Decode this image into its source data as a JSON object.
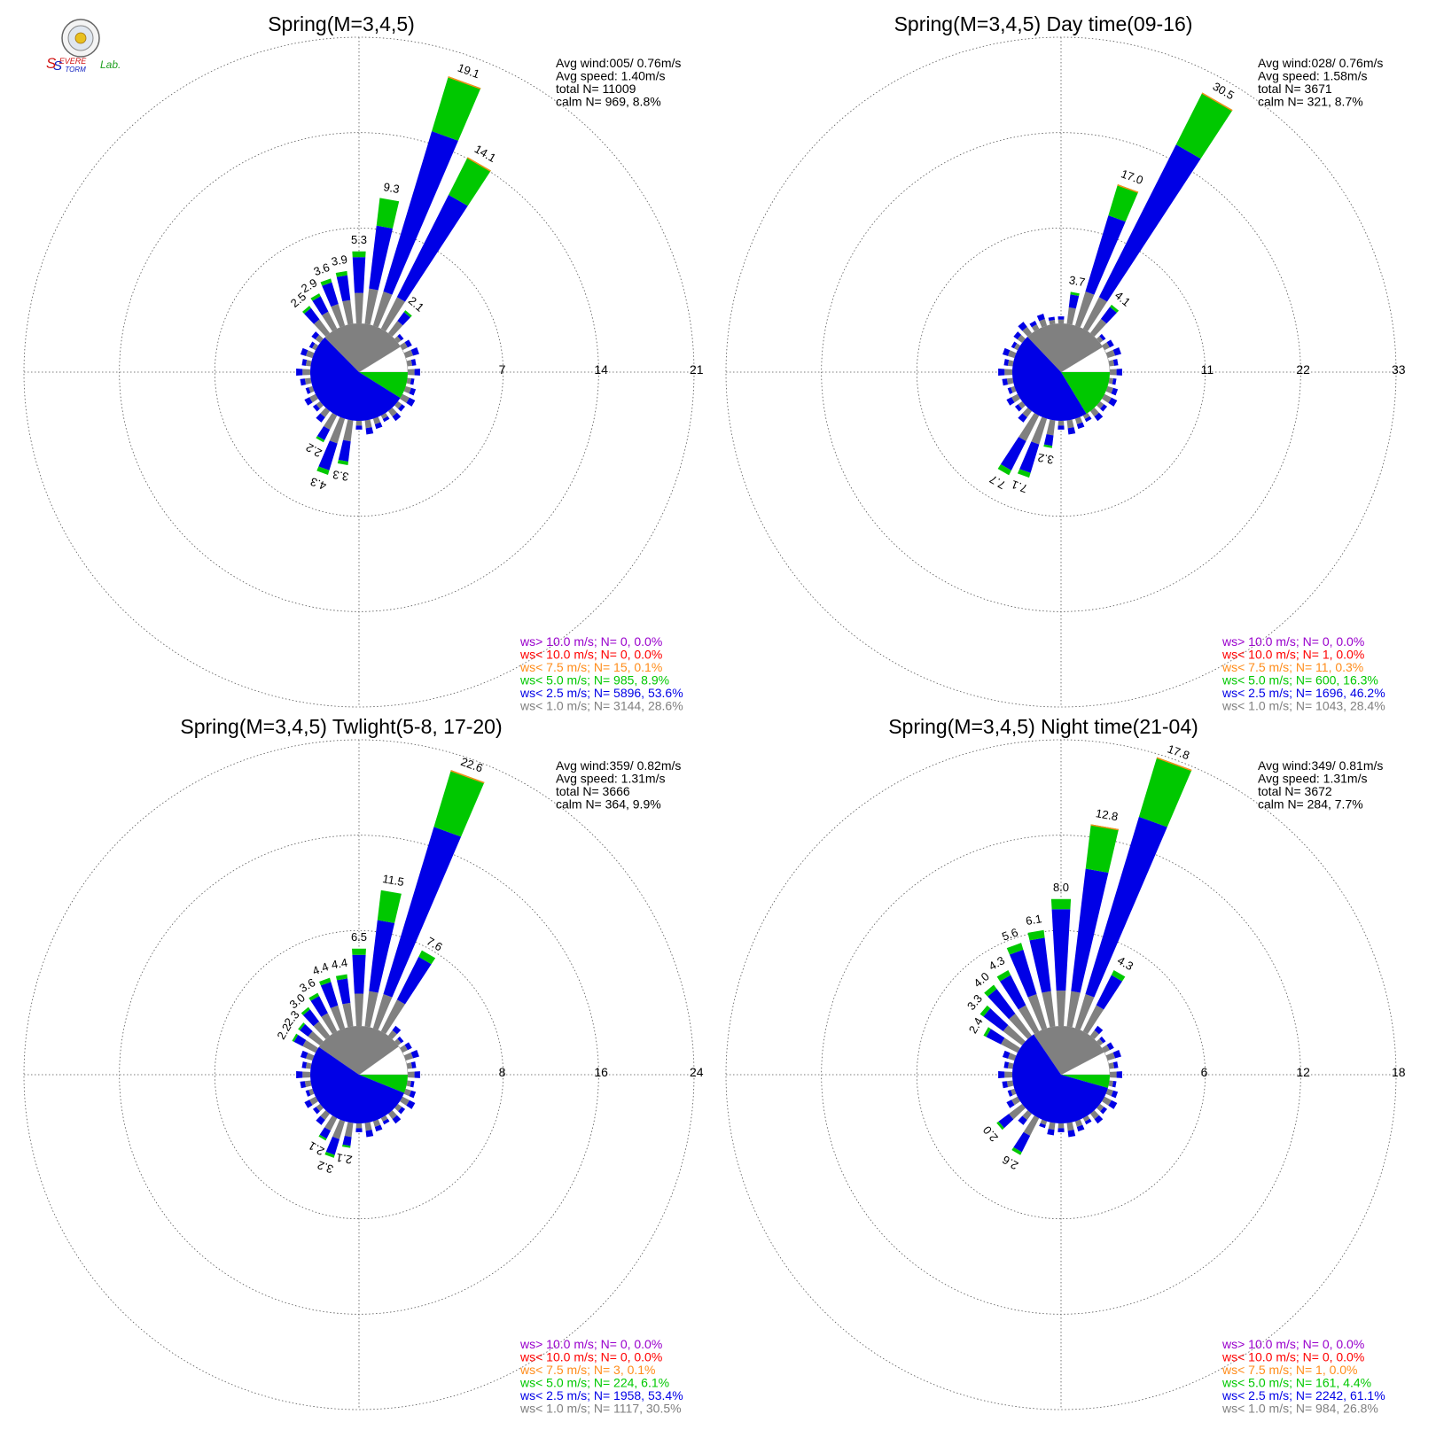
{
  "logo": {
    "text_s1": "S",
    "text_evere": "EVERE",
    "text_s2": "S",
    "text_torm": "TORM",
    "text_lab": "Lab."
  },
  "colors": {
    "calm_white": "#ffffff",
    "c_lt1": "#808080",
    "c_lt25": "#0000e6",
    "c_lt5": "#00c800",
    "c_lt75": "#ff8c1a",
    "c_lt10": "#ff0000",
    "c_gt10": "#9900cc"
  },
  "chart_data": [
    {
      "type": "wind-rose",
      "title": "Spring(M=3,4,5)",
      "stats": [
        "Avg wind:005/ 0.76m/s",
        "Avg speed: 1.40m/s",
        "total N=       11009",
        "calm N=    969,   8.8%"
      ],
      "rings": [
        7,
        14,
        21
      ],
      "ring_labels": [
        "7",
        "14",
        "21"
      ],
      "calm_pct": 8.8,
      "pie_fractions": {
        "calm": 0.088,
        "lt1": 0.286,
        "lt25": 0.536,
        "lt5": 0.089
      },
      "labeled": [
        {
          "dir_deg": 10,
          "value": 9.3,
          "label": "9.3"
        },
        {
          "dir_deg": 20,
          "value": 19.1,
          "label": "19.1"
        },
        {
          "dir_deg": 30,
          "value": 14.1,
          "label": "14.1"
        },
        {
          "dir_deg": 40,
          "value": 2.1,
          "label": "2.1"
        },
        {
          "dir_deg": 360,
          "value": 5.3,
          "label": "5.3"
        },
        {
          "dir_deg": 350,
          "value": 3.9,
          "label": "3.9"
        },
        {
          "dir_deg": 340,
          "value": 3.6,
          "label": "3.6"
        },
        {
          "dir_deg": 330,
          "value": 2.9,
          "label": "2.9"
        },
        {
          "dir_deg": 320,
          "value": 2.5,
          "label": "2.5"
        },
        {
          "dir_deg": 190,
          "value": 3.3,
          "label": "3.3"
        },
        {
          "dir_deg": 200,
          "value": 4.3,
          "label": "4.3"
        },
        {
          "dir_deg": 210,
          "value": 2.2,
          "label": "2.2"
        }
      ],
      "legend": [
        {
          "text": "ws> 10.0 m/s; N=      0,  0.0%",
          "color": "#9900cc"
        },
        {
          "text": "ws< 10.0 m/s; N=      0,  0.0%",
          "color": "#ff0000"
        },
        {
          "text": "ws<  7.5 m/s; N=     15,  0.1%",
          "color": "#ff8c1a"
        },
        {
          "text": "ws<  5.0 m/s; N=    985,  8.9%",
          "color": "#00c800"
        },
        {
          "text": "ws<  2.5 m/s; N=   5896, 53.6%",
          "color": "#0000e6"
        },
        {
          "text": "ws<  1.0 m/s; N=   3144, 28.6%",
          "color": "#808080"
        }
      ]
    },
    {
      "type": "wind-rose",
      "title": "Spring(M=3,4,5) Day time(09-16)",
      "stats": [
        "Avg wind:028/ 0.76m/s",
        "Avg speed: 1.58m/s",
        "total N=        3671",
        "calm N=    321,   8.7%"
      ],
      "rings": [
        11,
        22,
        33
      ],
      "ring_labels": [
        "11",
        "22",
        "33"
      ],
      "calm_pct": 8.7,
      "pie_fractions": {
        "calm": 0.087,
        "lt1": 0.284,
        "lt25": 0.462,
        "lt5": 0.163
      },
      "labeled": [
        {
          "dir_deg": 20,
          "value": 17.0,
          "label": "17.0"
        },
        {
          "dir_deg": 30,
          "value": 30.5,
          "label": "30.5"
        },
        {
          "dir_deg": 40,
          "value": 4.1,
          "label": "4.1"
        },
        {
          "dir_deg": 10,
          "value": 3.7,
          "label": "3.7"
        },
        {
          "dir_deg": 200,
          "value": 7.1,
          "label": "7.1"
        },
        {
          "dir_deg": 210,
          "value": 7.7,
          "label": "7.7"
        },
        {
          "dir_deg": 190,
          "value": 3.2,
          "label": "3.2"
        }
      ],
      "legend": [
        {
          "text": "ws> 10.0 m/s; N=      0,  0.0%",
          "color": "#9900cc"
        },
        {
          "text": "ws< 10.0 m/s; N=      1,  0.0%",
          "color": "#ff0000"
        },
        {
          "text": "ws<  7.5 m/s; N=     11,  0.3%",
          "color": "#ff8c1a"
        },
        {
          "text": "ws<  5.0 m/s; N=    600, 16.3%",
          "color": "#00c800"
        },
        {
          "text": "ws<  2.5 m/s; N=   1696, 46.2%",
          "color": "#0000e6"
        },
        {
          "text": "ws<  1.0 m/s; N=   1043, 28.4%",
          "color": "#808080"
        }
      ]
    },
    {
      "type": "wind-rose",
      "title": "Spring(M=3,4,5) Twlight(5-8, 17-20)",
      "stats": [
        "Avg wind:359/ 0.82m/s",
        "Avg speed: 1.31m/s",
        "total N=        3666",
        "calm N=    364,   9.9%"
      ],
      "rings": [
        8,
        16,
        24
      ],
      "ring_labels": [
        "8",
        "16",
        "24"
      ],
      "calm_pct": 9.9,
      "pie_fractions": {
        "calm": 0.099,
        "lt1": 0.305,
        "lt25": 0.534,
        "lt5": 0.061
      },
      "labeled": [
        {
          "dir_deg": 10,
          "value": 11.5,
          "label": "11.5"
        },
        {
          "dir_deg": 20,
          "value": 22.6,
          "label": "22.6"
        },
        {
          "dir_deg": 30,
          "value": 7.6,
          "label": "7.6"
        },
        {
          "dir_deg": 360,
          "value": 6.5,
          "label": "6.5"
        },
        {
          "dir_deg": 350,
          "value": 4.4,
          "label": "4.4"
        },
        {
          "dir_deg": 340,
          "value": 4.4,
          "label": "4.4"
        },
        {
          "dir_deg": 330,
          "value": 3.6,
          "label": "3.6"
        },
        {
          "dir_deg": 320,
          "value": 3.0,
          "label": "3.0"
        },
        {
          "dir_deg": 310,
          "value": 2.3,
          "label": "2.3"
        },
        {
          "dir_deg": 300,
          "value": 2.2,
          "label": "2.2"
        },
        {
          "dir_deg": 190,
          "value": 2.1,
          "label": "2.1"
        },
        {
          "dir_deg": 200,
          "value": 3.2,
          "label": "3.2"
        },
        {
          "dir_deg": 210,
          "value": 2.1,
          "label": "2.1"
        }
      ],
      "legend": [
        {
          "text": "ws> 10.0 m/s; N=      0,  0.0%",
          "color": "#9900cc"
        },
        {
          "text": "ws< 10.0 m/s; N=      0,  0.0%",
          "color": "#ff0000"
        },
        {
          "text": "ws<  7.5 m/s; N=      3,  0.1%",
          "color": "#ff8c1a"
        },
        {
          "text": "ws<  5.0 m/s; N=    224,  6.1%",
          "color": "#00c800"
        },
        {
          "text": "ws<  2.5 m/s; N=   1958, 53.4%",
          "color": "#0000e6"
        },
        {
          "text": "ws<  1.0 m/s; N=   1117, 30.5%",
          "color": "#808080"
        }
      ]
    },
    {
      "type": "wind-rose",
      "title": "Spring(M=3,4,5) Night time(21-04)",
      "stats": [
        "Avg wind:349/ 0.81m/s",
        "Avg speed: 1.31m/s",
        "total N=        3672",
        "calm N=    284,   7.7%"
      ],
      "rings": [
        6,
        12,
        18
      ],
      "ring_labels": [
        "6",
        "12",
        "18"
      ],
      "calm_pct": 7.7,
      "pie_fractions": {
        "calm": 0.077,
        "lt1": 0.268,
        "lt25": 0.611,
        "lt5": 0.044
      },
      "labeled": [
        {
          "dir_deg": 10,
          "value": 12.8,
          "label": "12.8"
        },
        {
          "dir_deg": 20,
          "value": 17.8,
          "label": "17.8"
        },
        {
          "dir_deg": 30,
          "value": 4.3,
          "label": "4.3"
        },
        {
          "dir_deg": 360,
          "value": 8.0,
          "label": "8.0"
        },
        {
          "dir_deg": 350,
          "value": 6.1,
          "label": "6.1"
        },
        {
          "dir_deg": 340,
          "value": 5.6,
          "label": "5.6"
        },
        {
          "dir_deg": 330,
          "value": 4.3,
          "label": "4.3"
        },
        {
          "dir_deg": 320,
          "value": 4.0,
          "label": "4.0"
        },
        {
          "dir_deg": 310,
          "value": 3.3,
          "label": "3.3"
        },
        {
          "dir_deg": 300,
          "value": 2.4,
          "label": "2.4"
        },
        {
          "dir_deg": 230,
          "value": 2.0,
          "label": "2.0"
        },
        {
          "dir_deg": 210,
          "value": 2.6,
          "label": "2.6"
        }
      ],
      "legend": [
        {
          "text": "ws> 10.0 m/s; N=      0,  0.0%",
          "color": "#9900cc"
        },
        {
          "text": "ws< 10.0 m/s; N=      0,  0.0%",
          "color": "#ff0000"
        },
        {
          "text": "ws<  7.5 m/s; N=      1,  0.0%",
          "color": "#ff8c1a"
        },
        {
          "text": "ws<  5.0 m/s; N=    161,  4.4%",
          "color": "#00c800"
        },
        {
          "text": "ws<  2.5 m/s; N=   2242, 61.1%",
          "color": "#0000e6"
        },
        {
          "text": "ws<  1.0 m/s; N=    984, 26.8%",
          "color": "#808080"
        }
      ]
    }
  ]
}
